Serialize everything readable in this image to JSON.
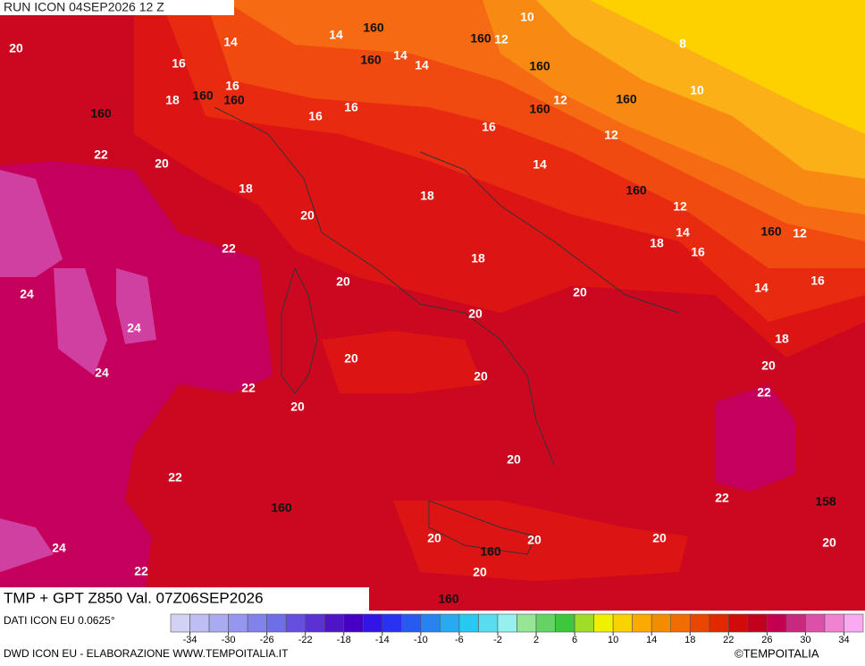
{
  "header": {
    "title": "RUN ICON 04SEP2026 12 Z"
  },
  "footer": {
    "title": "TMP + GPT Z850 Val. 07Z06SEP2026",
    "source": "DATI ICON EU 0.0625°",
    "credit": "DWD ICON EU - ELABORAZIONE WWW.TEMPOITALIA.IT",
    "copyright": "©TEMPOITALIA"
  },
  "temperature_labels": [
    20,
    14,
    14,
    10,
    16,
    16,
    18,
    14,
    14,
    12,
    8,
    10,
    12,
    16,
    16,
    16,
    12,
    22,
    20,
    14,
    18,
    18,
    20,
    12,
    22,
    14,
    18,
    16,
    12,
    18,
    20,
    20,
    14,
    16,
    24,
    20,
    24,
    18,
    20,
    20,
    24,
    20,
    22,
    22,
    20,
    20,
    22,
    22,
    20,
    20,
    20,
    24,
    20,
    22,
    20
  ],
  "geopotential_labels": [
    160,
    160,
    160,
    160,
    160,
    160,
    160,
    160,
    160,
    160,
    160,
    160,
    160,
    158,
    160
  ],
  "colorbar": {
    "xlim": [
      -36,
      36
    ],
    "ticks": [
      -34,
      -30,
      -26,
      -22,
      -18,
      -14,
      -10,
      -6,
      -2,
      2,
      6,
      10,
      14,
      18,
      22,
      26,
      30,
      34
    ],
    "colors": [
      "#d2d2f5",
      "#bebef5",
      "#aaaaf0",
      "#9696f0",
      "#8282eb",
      "#6e6ee6",
      "#6450dc",
      "#5a32d2",
      "#5014c8",
      "#4600c3",
      "#3214e6",
      "#2832f0",
      "#285af0",
      "#2882f0",
      "#28aaf0",
      "#28c8f0",
      "#5adcf0",
      "#96f0f0",
      "#96e696",
      "#64d264",
      "#3cc83c",
      "#a0dc28",
      "#f0f000",
      "#fad200",
      "#faaa00",
      "#f58c00",
      "#f06e00",
      "#eb4600",
      "#e12800",
      "#d20a0a",
      "#c3001e",
      "#c30050",
      "#c8287d",
      "#dc50aa",
      "#f082d2",
      "#faaaf0"
    ]
  }
}
